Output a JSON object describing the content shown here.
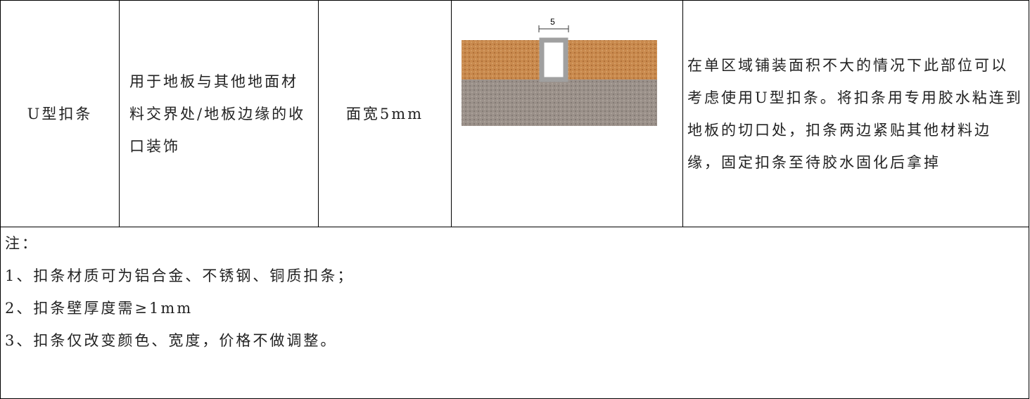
{
  "table": {
    "rows": [
      [
        "U型扣条",
        "用于地板与其他地面材料交界处/地板边缘的收口装饰",
        "面宽5mm",
        "在单区域铺装面积不大的情况下此部位可以考虑使用U型扣条。将扣条用专用胶水粘连到地板的切口处，扣条两边紧贴其他材料边缘，固定扣条至待胶水固化后拿掉"
      ]
    ],
    "diagram_label": "5"
  },
  "notes": {
    "title": "注：",
    "items": [
      "1、扣条材质可为铝合金、不锈钢、铜质扣条；",
      "2、扣条壁厚度需≥1mm",
      "3、扣条仅改变颜色、宽度，价格不做调整。"
    ]
  }
}
